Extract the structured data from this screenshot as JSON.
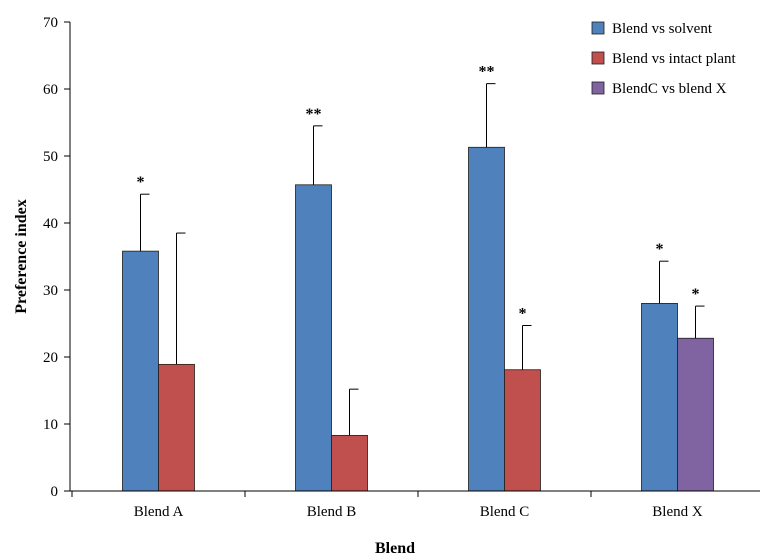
{
  "chart_data": {
    "type": "bar",
    "title": "",
    "xlabel": "Blend",
    "ylabel": "Preference index",
    "ylim": [
      0,
      70
    ],
    "yticks": [
      0,
      10,
      20,
      30,
      40,
      50,
      60,
      70
    ],
    "grid": false,
    "legend_position": "top-right",
    "categories": [
      "Blend A",
      "Blend B",
      "Blend C",
      "Blend X"
    ],
    "series": [
      {
        "name": "Blend vs solvent",
        "color": "#4F81BD",
        "values": [
          35.8,
          45.7,
          51.3,
          28.0
        ],
        "errors": [
          8.5,
          8.8,
          9.5,
          6.3
        ],
        "significance": [
          "*",
          "**",
          "**",
          "*"
        ]
      },
      {
        "name": "Blend vs intact plant",
        "color": "#C0504D",
        "values": [
          18.9,
          8.3,
          18.1,
          null
        ],
        "errors": [
          19.6,
          6.9,
          6.6,
          null
        ],
        "significance": [
          "",
          "",
          "*",
          ""
        ]
      },
      {
        "name": "BlendC vs blend X",
        "color": "#8064A2",
        "values": [
          null,
          null,
          null,
          22.8
        ],
        "errors": [
          null,
          null,
          null,
          4.8
        ],
        "significance": [
          "",
          "",
          "",
          "*"
        ]
      }
    ]
  }
}
